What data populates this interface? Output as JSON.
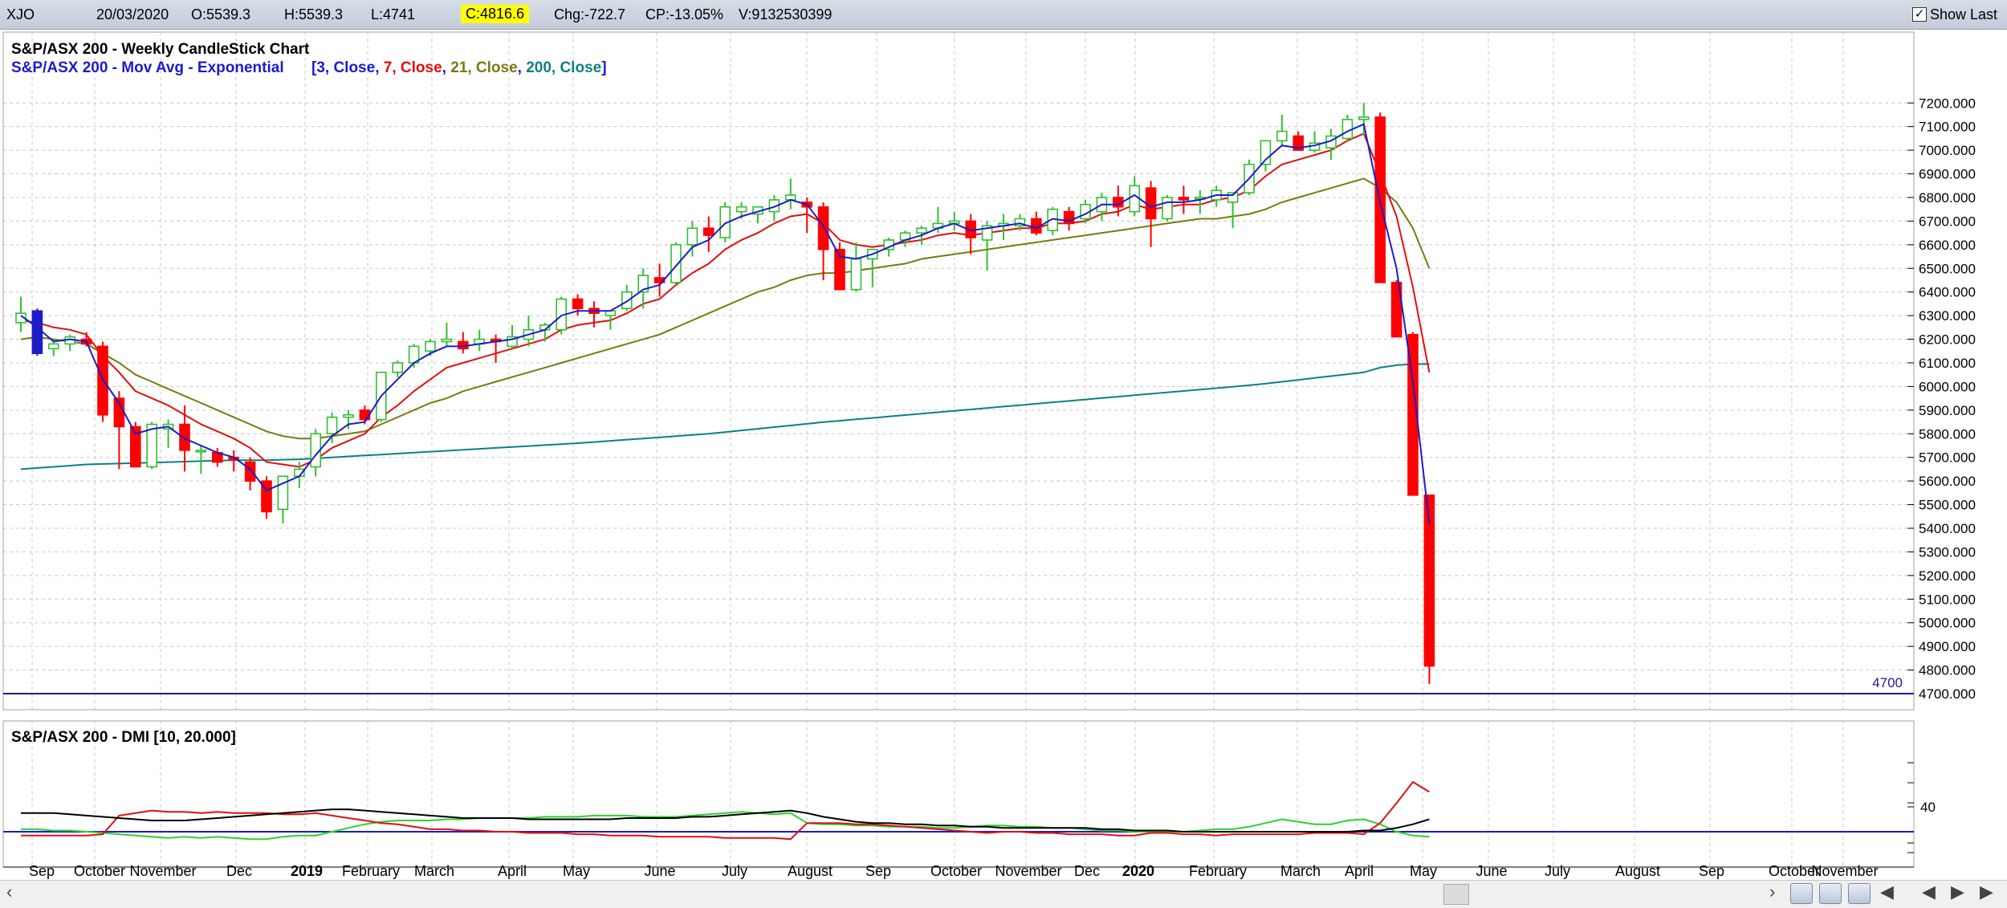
{
  "header": {
    "symbol": "XJO",
    "date": "20/03/2020",
    "open": "O:5539.3",
    "high": "H:5539.3",
    "low": "L:4741",
    "close": "C:4816.6",
    "change": "Chg:-722.7",
    "change_pct": "CP:-13.05%",
    "volume": "V:9132530399",
    "show_last_label": "Show Last",
    "show_last_checked": "✓"
  },
  "chart_data": [
    {
      "type": "candlestick",
      "title": "S&P/ASX 200 - Weekly CandleStick Chart",
      "overlay_label": "S&P/ASX 200 - Mov Avg - Exponential",
      "overlay_params": [
        "3, Close",
        "7, Close",
        "21, Close",
        "200, Close"
      ],
      "overlay_colors": [
        "#1c1cc8",
        "#e01010",
        "#7a7a10",
        "#108080"
      ],
      "ylim": [
        4640,
        7240
      ],
      "y_ticks": [
        "7200.000",
        "7100.000",
        "7000.000",
        "6900.000",
        "6800.000",
        "6700.000",
        "6600.000",
        "6500.000",
        "6400.000",
        "6300.000",
        "6200.000",
        "6100.000",
        "6000.000",
        "5900.000",
        "5800.000",
        "5700.000",
        "5600.000",
        "5500.000",
        "5400.000",
        "5300.000",
        "5200.000",
        "5100.000",
        "5000.000",
        "4900.000",
        "4800.000",
        "4700.000"
      ],
      "horizontal_line": {
        "value": 4700,
        "label": "4700"
      },
      "candles_ohlc": [
        [
          6270,
          6380,
          6230,
          6310
        ],
        [
          6320,
          6330,
          6130,
          6140
        ],
        [
          6160,
          6200,
          6130,
          6180
        ],
        [
          6180,
          6220,
          6150,
          6210
        ],
        [
          6200,
          6230,
          6170,
          6180
        ],
        [
          6170,
          6190,
          5850,
          5880
        ],
        [
          5950,
          5980,
          5650,
          5830
        ],
        [
          5830,
          5850,
          5660,
          5660
        ],
        [
          5660,
          5850,
          5650,
          5840
        ],
        [
          5820,
          5860,
          5740,
          5840
        ],
        [
          5840,
          5920,
          5640,
          5730
        ],
        [
          5730,
          5750,
          5630,
          5730
        ],
        [
          5720,
          5740,
          5660,
          5680
        ],
        [
          5700,
          5730,
          5640,
          5690
        ],
        [
          5680,
          5700,
          5560,
          5600
        ],
        [
          5600,
          5620,
          5440,
          5470
        ],
        [
          5480,
          5600,
          5420,
          5620
        ],
        [
          5620,
          5680,
          5570,
          5650
        ],
        [
          5660,
          5820,
          5620,
          5800
        ],
        [
          5800,
          5890,
          5760,
          5870
        ],
        [
          5870,
          5900,
          5820,
          5880
        ],
        [
          5900,
          5920,
          5840,
          5860
        ],
        [
          5860,
          6060,
          5850,
          6060
        ],
        [
          6060,
          6110,
          6040,
          6100
        ],
        [
          6100,
          6180,
          6080,
          6170
        ],
        [
          6150,
          6200,
          6130,
          6190
        ],
        [
          6190,
          6270,
          6170,
          6200
        ],
        [
          6190,
          6230,
          6140,
          6160
        ],
        [
          6180,
          6240,
          6150,
          6200
        ],
        [
          6200,
          6220,
          6100,
          6190
        ],
        [
          6170,
          6260,
          6160,
          6210
        ],
        [
          6200,
          6300,
          6170,
          6240
        ],
        [
          6240,
          6270,
          6190,
          6260
        ],
        [
          6240,
          6380,
          6220,
          6370
        ],
        [
          6370,
          6390,
          6300,
          6330
        ],
        [
          6330,
          6360,
          6250,
          6310
        ],
        [
          6300,
          6320,
          6240,
          6320
        ],
        [
          6330,
          6430,
          6320,
          6400
        ],
        [
          6400,
          6500,
          6330,
          6470
        ],
        [
          6460,
          6520,
          6380,
          6440
        ],
        [
          6440,
          6610,
          6430,
          6600
        ],
        [
          6600,
          6700,
          6550,
          6670
        ],
        [
          6670,
          6720,
          6570,
          6640
        ],
        [
          6630,
          6780,
          6610,
          6760
        ],
        [
          6740,
          6780,
          6710,
          6760
        ],
        [
          6730,
          6760,
          6690,
          6760
        ],
        [
          6740,
          6810,
          6700,
          6790
        ],
        [
          6790,
          6880,
          6750,
          6810
        ],
        [
          6780,
          6800,
          6650,
          6760
        ],
        [
          6760,
          6780,
          6450,
          6580
        ],
        [
          6580,
          6610,
          6410,
          6410
        ],
        [
          6410,
          6610,
          6400,
          6540
        ],
        [
          6540,
          6580,
          6420,
          6580
        ],
        [
          6580,
          6630,
          6550,
          6620
        ],
        [
          6620,
          6660,
          6590,
          6650
        ],
        [
          6650,
          6680,
          6600,
          6670
        ],
        [
          6670,
          6760,
          6650,
          6690
        ],
        [
          6690,
          6740,
          6660,
          6700
        ],
        [
          6700,
          6730,
          6560,
          6630
        ],
        [
          6620,
          6700,
          6490,
          6680
        ],
        [
          6680,
          6730,
          6620,
          6690
        ],
        [
          6680,
          6730,
          6660,
          6710
        ],
        [
          6710,
          6740,
          6640,
          6650
        ],
        [
          6660,
          6760,
          6640,
          6750
        ],
        [
          6740,
          6760,
          6660,
          6690
        ],
        [
          6710,
          6790,
          6690,
          6770
        ],
        [
          6740,
          6820,
          6700,
          6800
        ],
        [
          6800,
          6850,
          6720,
          6760
        ],
        [
          6740,
          6890,
          6720,
          6850
        ],
        [
          6840,
          6870,
          6590,
          6710
        ],
        [
          6710,
          6810,
          6700,
          6800
        ],
        [
          6800,
          6850,
          6730,
          6790
        ],
        [
          6800,
          6830,
          6730,
          6800
        ],
        [
          6790,
          6850,
          6760,
          6830
        ],
        [
          6780,
          6820,
          6670,
          6820
        ],
        [
          6820,
          6960,
          6810,
          6940
        ],
        [
          6940,
          7030,
          6910,
          7040
        ],
        [
          7040,
          7150,
          7020,
          7080
        ],
        [
          7060,
          7080,
          7000,
          7000
        ],
        [
          7000,
          7080,
          6990,
          7030
        ],
        [
          7010,
          7090,
          6960,
          7060
        ],
        [
          7050,
          7150,
          7040,
          7130
        ],
        [
          7130,
          7200,
          7060,
          7140
        ],
        [
          7140,
          7160,
          6440,
          6440
        ],
        [
          6440,
          6450,
          6210,
          6210
        ],
        [
          6220,
          6230,
          5540,
          5540
        ],
        [
          5540,
          5540,
          4741,
          4817
        ]
      ],
      "ema3": [
        6300,
        6250,
        6190,
        6200,
        6190,
        6030,
        5930,
        5800,
        5820,
        5830,
        5780,
        5750,
        5720,
        5700,
        5650,
        5560,
        5590,
        5620,
        5710,
        5790,
        5840,
        5850,
        5960,
        6030,
        6100,
        6140,
        6170,
        6170,
        6180,
        6190,
        6200,
        6220,
        6240,
        6300,
        6320,
        6320,
        6320,
        6360,
        6410,
        6430,
        6510,
        6590,
        6620,
        6690,
        6720,
        6740,
        6760,
        6790,
        6770,
        6680,
        6550,
        6540,
        6560,
        6590,
        6620,
        6640,
        6670,
        6690,
        6660,
        6670,
        6680,
        6690,
        6670,
        6710,
        6700,
        6730,
        6770,
        6770,
        6810,
        6760,
        6780,
        6780,
        6790,
        6810,
        6810,
        6880,
        6960,
        7020,
        7010,
        7020,
        7040,
        7080,
        7110,
        6780,
        6500,
        6020,
        5420
      ],
      "ema7": [
        6280,
        6270,
        6250,
        6240,
        6220,
        6130,
        6060,
        5980,
        5950,
        5920,
        5880,
        5840,
        5810,
        5780,
        5740,
        5680,
        5670,
        5660,
        5690,
        5740,
        5770,
        5800,
        5870,
        5920,
        5980,
        6030,
        6080,
        6100,
        6120,
        6140,
        6160,
        6180,
        6200,
        6240,
        6260,
        6270,
        6280,
        6310,
        6350,
        6370,
        6430,
        6480,
        6520,
        6580,
        6620,
        6650,
        6690,
        6720,
        6730,
        6690,
        6620,
        6600,
        6590,
        6600,
        6610,
        6620,
        6640,
        6650,
        6640,
        6650,
        6660,
        6670,
        6670,
        6690,
        6690,
        6700,
        6730,
        6740,
        6770,
        6750,
        6760,
        6770,
        6770,
        6790,
        6800,
        6830,
        6890,
        6940,
        6960,
        6980,
        7000,
        7040,
        7070,
        6900,
        6720,
        6420,
        6060
      ],
      "ema21": [
        6200,
        6210,
        6200,
        6190,
        6180,
        6140,
        6100,
        6050,
        6020,
        5990,
        5960,
        5930,
        5900,
        5870,
        5840,
        5810,
        5790,
        5780,
        5780,
        5790,
        5800,
        5810,
        5840,
        5870,
        5900,
        5930,
        5950,
        5980,
        6000,
        6020,
        6040,
        6060,
        6080,
        6100,
        6120,
        6140,
        6160,
        6180,
        6200,
        6220,
        6250,
        6280,
        6310,
        6340,
        6370,
        6400,
        6420,
        6450,
        6470,
        6480,
        6480,
        6490,
        6500,
        6510,
        6520,
        6540,
        6550,
        6560,
        6570,
        6580,
        6590,
        6600,
        6610,
        6620,
        6630,
        6640,
        6650,
        6660,
        6670,
        6680,
        6690,
        6700,
        6710,
        6710,
        6720,
        6730,
        6750,
        6780,
        6800,
        6820,
        6840,
        6860,
        6880,
        6840,
        6780,
        6670,
        6500
      ],
      "ema200": [
        5650,
        5655,
        5660,
        5665,
        5670,
        5672,
        5674,
        5676,
        5678,
        5680,
        5682,
        5684,
        5686,
        5688,
        5688,
        5688,
        5690,
        5692,
        5696,
        5700,
        5704,
        5708,
        5712,
        5716,
        5720,
        5724,
        5728,
        5732,
        5736,
        5740,
        5744,
        5748,
        5752,
        5756,
        5760,
        5765,
        5770,
        5775,
        5780,
        5785,
        5790,
        5795,
        5800,
        5807,
        5814,
        5821,
        5828,
        5835,
        5842,
        5849,
        5855,
        5861,
        5867,
        5873,
        5879,
        5885,
        5891,
        5897,
        5903,
        5909,
        5915,
        5921,
        5927,
        5933,
        5939,
        5945,
        5951,
        5957,
        5963,
        5969,
        5975,
        5981,
        5987,
        5993,
        5999,
        6005,
        6012,
        6020,
        6028,
        6036,
        6044,
        6052,
        6060,
        6080,
        6090,
        6095,
        6095
      ],
      "x_labels": [
        "Sep",
        "October",
        "November",
        "Dec",
        "2019",
        "February",
        "March",
        "April",
        "May",
        "June",
        "July",
        "August",
        "Sep",
        "October",
        "November",
        "Dec",
        "2020",
        "February",
        "March",
        "April",
        "May",
        "June",
        "July",
        "August",
        "Sep",
        "October",
        "November"
      ]
    },
    {
      "type": "line",
      "title": "S&P/ASX 200 - DMI [10, 20.000]",
      "series_colors": [
        "#000000",
        "#e01010",
        "#30d030"
      ],
      "reference_level": 20,
      "ylim": [
        10,
        70
      ],
      "y_ticks": [
        "40"
      ],
      "adx": [
        35,
        35,
        35,
        34,
        33,
        32,
        31,
        30,
        29,
        29,
        29,
        30,
        31,
        32,
        33,
        34,
        35,
        36,
        37,
        38,
        38,
        37,
        36,
        35,
        34,
        33,
        32,
        31,
        31,
        31,
        31,
        30,
        30,
        30,
        30,
        30,
        30,
        31,
        31,
        31,
        31,
        32,
        32,
        33,
        34,
        35,
        36,
        37,
        35,
        32,
        30,
        28,
        27,
        27,
        26,
        26,
        25,
        25,
        24,
        24,
        23,
        23,
        23,
        23,
        23,
        23,
        22,
        22,
        21,
        21,
        21,
        20,
        20,
        20,
        20,
        20,
        20,
        20,
        20,
        20,
        20,
        20,
        21,
        21,
        23,
        26,
        30
      ],
      "plus_di": [
        17,
        17,
        17,
        17,
        17,
        18,
        33,
        35,
        37,
        36,
        36,
        35,
        36,
        35,
        35,
        35,
        34,
        34,
        35,
        33,
        31,
        29,
        27,
        26,
        24,
        22,
        22,
        21,
        21,
        20,
        20,
        19,
        19,
        19,
        18,
        18,
        17,
        17,
        17,
        16,
        16,
        16,
        16,
        15,
        15,
        15,
        15,
        14,
        27,
        27,
        27,
        26,
        26,
        25,
        24,
        23,
        22,
        21,
        20,
        19,
        20,
        20,
        19,
        19,
        18,
        18,
        18,
        17,
        17,
        19,
        19,
        18,
        18,
        17,
        18,
        18,
        18,
        18,
        18,
        19,
        19,
        19,
        18,
        27,
        43,
        60,
        52
      ],
      "minus_di": [
        22,
        22,
        21,
        21,
        20,
        19,
        18,
        17,
        16,
        15,
        16,
        15,
        16,
        15,
        14,
        14,
        16,
        17,
        17,
        20,
        23,
        26,
        28,
        29,
        29,
        29,
        30,
        30,
        31,
        31,
        31,
        31,
        32,
        32,
        32,
        33,
        33,
        33,
        32,
        32,
        32,
        33,
        34,
        35,
        36,
        35,
        34,
        35,
        27,
        26,
        26,
        25,
        25,
        24,
        24,
        24,
        23,
        23,
        24,
        25,
        25,
        24,
        24,
        23,
        23,
        22,
        21,
        21,
        20,
        20,
        20,
        20,
        21,
        22,
        22,
        24,
        27,
        30,
        28,
        26,
        26,
        29,
        30,
        26,
        20,
        17,
        16
      ],
      "x_labels": [
        "Sep",
        "October",
        "November",
        "Dec",
        "2019",
        "February",
        "March",
        "April",
        "May",
        "June",
        "July",
        "August",
        "Sep",
        "October",
        "November",
        "Dec",
        "2020",
        "February",
        "March",
        "April",
        "May",
        "June",
        "July",
        "August",
        "Sep",
        "October",
        "November"
      ]
    }
  ]
}
